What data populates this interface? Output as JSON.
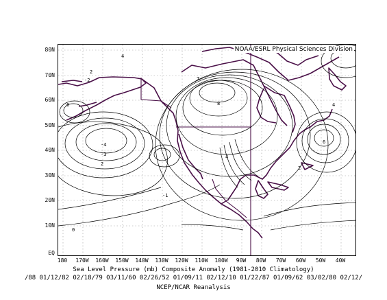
{
  "credit": "NOAA/ESRL Physical Sciences Division",
  "title_line1": "Sea Level Pressure (mb) Composite Anomaly (1981-2010 Climatology)",
  "title_line2": "/88 01/12/82 02/18/79 03/11/60 02/26/52 01/09/11 02/12/10 01/22/87 01/09/62 03/02/80 02/12/",
  "source": "NCEP/NCAR Reanalysis",
  "y_ticks": [
    "80N",
    "70N",
    "60N",
    "50N",
    "40N",
    "30N",
    "20N",
    "10N",
    "EQ"
  ],
  "x_ticks": [
    "180",
    "170W",
    "160W",
    "150W",
    "140W",
    "130W",
    "120W",
    "110W",
    "100W",
    "90W",
    "80W",
    "70W",
    "60W",
    "50W",
    "40W"
  ],
  "contour_labels": [
    "4",
    "2",
    "-2",
    "6",
    "8",
    "-4",
    "-3",
    "2",
    "0",
    "-1",
    "4",
    "2",
    "4",
    "6",
    "7"
  ],
  "colors": {
    "coast": "#4a1048",
    "contour": "#000000",
    "grid": "#9a9a9a"
  },
  "map": {
    "projection": "lat-lon",
    "lon_range": [
      "180",
      "40W"
    ],
    "lat_range": [
      "EQ",
      "85N"
    ],
    "contour_interval_mb": 1
  }
}
